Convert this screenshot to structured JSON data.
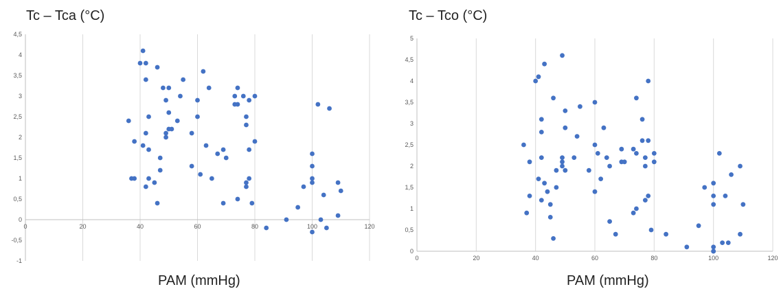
{
  "chart_data": [
    {
      "type": "scatter",
      "title": "Tc – Tca (°C)",
      "xlabel": "PAM (mmHg)",
      "ylabel": "",
      "xlim": [
        0,
        120
      ],
      "ylim": [
        -1,
        4.5
      ],
      "x_ticks": [
        "0",
        "20",
        "40",
        "60",
        "80",
        "100",
        "120"
      ],
      "y_ticks": [
        "-1",
        "-0,5",
        "0",
        "0,5",
        "1",
        "1,5",
        "2",
        "2,5",
        "3",
        "3,5",
        "4",
        "4,5"
      ],
      "grid": "vertical",
      "marker_color": "#4472C4",
      "x": [
        36,
        37,
        38,
        38,
        40,
        41,
        41,
        42,
        42,
        42,
        42,
        43,
        43,
        43,
        45,
        46,
        46,
        47,
        47,
        48,
        49,
        49,
        49,
        50,
        50,
        50,
        51,
        53,
        54,
        55,
        58,
        58,
        60,
        60,
        61,
        62,
        63,
        64,
        65,
        67,
        69,
        69,
        70,
        73,
        73,
        74,
        74,
        74,
        76,
        77,
        77,
        77,
        77,
        78,
        78,
        78,
        79,
        80,
        80,
        84,
        91,
        95,
        97,
        100,
        100,
        100,
        100,
        100,
        102,
        103,
        104,
        105,
        106,
        109,
        109,
        110
      ],
      "y": [
        2.4,
        1.0,
        1.0,
        1.9,
        3.8,
        4.1,
        1.8,
        3.8,
        3.4,
        2.1,
        0.8,
        2.5,
        1.7,
        1.0,
        0.9,
        3.7,
        0.4,
        1.5,
        1.2,
        3.2,
        2.9,
        2.1,
        2.0,
        3.2,
        2.6,
        2.2,
        2.2,
        2.4,
        3.0,
        3.4,
        2.1,
        1.3,
        2.9,
        2.5,
        1.1,
        3.6,
        1.8,
        3.2,
        1.0,
        1.6,
        0.4,
        1.7,
        1.5,
        2.8,
        3.0,
        0.5,
        3.2,
        2.8,
        3.0,
        2.5,
        2.3,
        0.9,
        0.8,
        2.9,
        1.7,
        1.0,
        0.4,
        3.0,
        1.9,
        -0.2,
        0.0,
        0.3,
        0.8,
        1.6,
        1.3,
        1.0,
        0.9,
        -0.3,
        2.8,
        0.0,
        0.6,
        -0.2,
        2.7,
        0.9,
        0.1,
        0.7
      ]
    },
    {
      "type": "scatter",
      "title": "Tc – Tco (°C)",
      "xlabel": "PAM (mmHg)",
      "ylabel": "",
      "xlim": [
        0,
        120
      ],
      "ylim": [
        0,
        5
      ],
      "x_ticks": [
        "0",
        "20",
        "40",
        "60",
        "80",
        "100",
        "120"
      ],
      "y_ticks": [
        "0",
        "0,5",
        "1",
        "1,5",
        "2",
        "2,5",
        "3",
        "3,5",
        "4",
        "4,5",
        "5"
      ],
      "grid": "vertical",
      "marker_color": "#4472C4",
      "x": [
        36,
        37,
        38,
        38,
        40,
        41,
        41,
        42,
        42,
        42,
        42,
        43,
        43,
        44,
        45,
        45,
        46,
        46,
        47,
        47,
        49,
        49,
        49,
        49,
        50,
        50,
        50,
        53,
        54,
        55,
        58,
        60,
        60,
        60,
        61,
        62,
        63,
        64,
        65,
        65,
        67,
        69,
        69,
        70,
        73,
        73,
        74,
        74,
        74,
        76,
        76,
        77,
        77,
        77,
        78,
        78,
        78,
        79,
        80,
        80,
        84,
        91,
        95,
        97,
        100,
        100,
        100,
        100,
        100,
        100,
        102,
        103,
        104,
        105,
        106,
        109,
        109,
        110
      ],
      "y": [
        2.5,
        0.9,
        2.1,
        1.3,
        4.0,
        4.1,
        1.7,
        3.1,
        2.8,
        2.2,
        1.2,
        4.4,
        1.6,
        1.4,
        1.1,
        0.8,
        3.6,
        0.3,
        1.9,
        1.5,
        4.6,
        2.2,
        2.1,
        2.0,
        3.3,
        2.9,
        1.9,
        2.2,
        2.7,
        3.4,
        1.9,
        3.5,
        2.5,
        1.4,
        2.3,
        1.7,
        2.9,
        2.2,
        2.0,
        0.7,
        0.4,
        2.4,
        2.1,
        2.1,
        2.4,
        0.9,
        3.6,
        2.3,
        1.0,
        3.1,
        2.6,
        2.2,
        2.0,
        1.2,
        4.0,
        2.6,
        1.3,
        0.5,
        2.3,
        2.1,
        0.4,
        0.1,
        0.6,
        1.5,
        1.6,
        1.3,
        1.1,
        0.1,
        0.0,
        0.0,
        2.3,
        0.2,
        1.3,
        0.2,
        1.8,
        2.0,
        0.4,
        1.1
      ]
    }
  ]
}
